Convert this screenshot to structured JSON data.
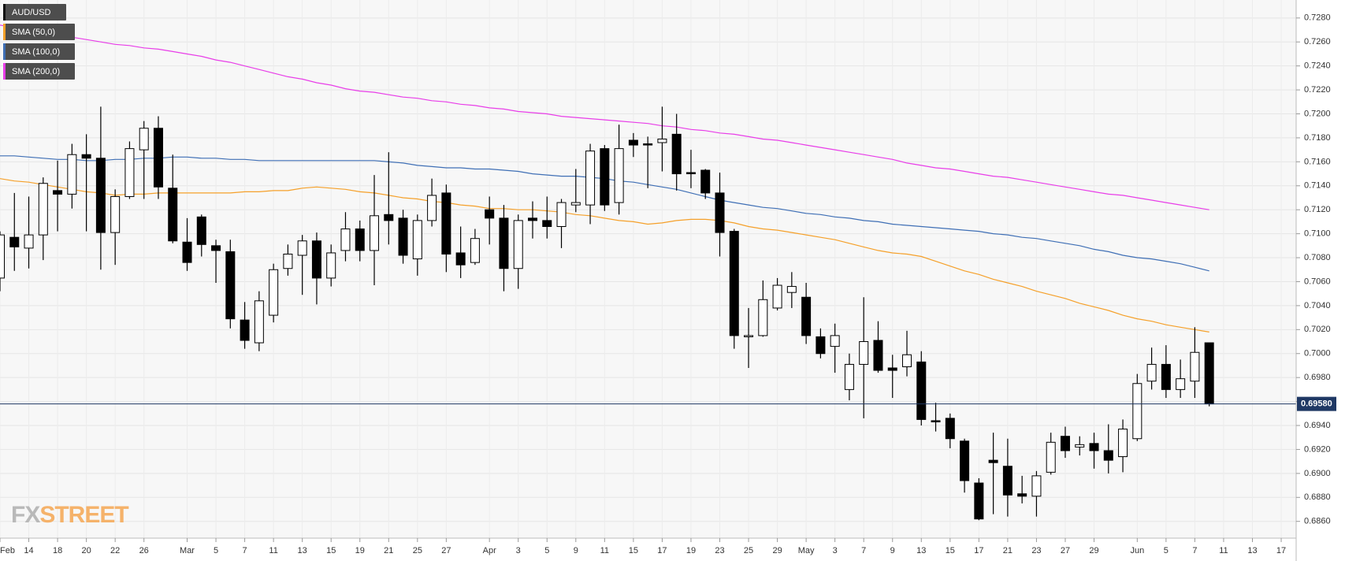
{
  "chart_data": {
    "type": "candlestick",
    "categories": [
      "Feb",
      null,
      "14",
      null,
      "18",
      null,
      "20",
      null,
      "22",
      null,
      "26",
      null,
      null,
      "Mar",
      null,
      "5",
      null,
      "7",
      null,
      "11",
      null,
      "13",
      null,
      "15",
      null,
      "19",
      null,
      "21",
      null,
      "25",
      null,
      "27",
      null,
      null,
      "Apr",
      null,
      "3",
      null,
      "5",
      null,
      "9",
      null,
      "11",
      null,
      "15",
      null,
      "17",
      null,
      "19",
      null,
      "23",
      null,
      "25",
      null,
      "29",
      null,
      "May",
      null,
      "3",
      null,
      "7",
      null,
      "9",
      null,
      "13",
      null,
      "15",
      null,
      "17",
      null,
      "21",
      null,
      "23",
      null,
      "27",
      null,
      "29",
      null,
      null,
      "Jun",
      null,
      "5",
      null,
      "7",
      null,
      "11",
      null,
      "13",
      null,
      "17"
    ],
    "series": [
      {
        "name": "AUD/USD",
        "color": "#000000",
        "up_color": "#ffffff",
        "down_color": "#000000",
        "open": [
          0.7063,
          0.7097,
          0.7088,
          0.7099,
          0.7136,
          0.7133,
          0.7166,
          0.7163,
          0.7101,
          0.7131,
          0.717,
          0.7188,
          0.7138,
          0.7093,
          0.7114,
          0.709,
          0.7085,
          0.7028,
          0.7009,
          0.7032,
          0.7071,
          0.7082,
          0.7094,
          0.7063,
          0.7086,
          0.7104,
          0.7086,
          0.7116,
          0.7113,
          0.7079,
          0.7111,
          0.7134,
          0.7084,
          0.7076,
          0.712,
          0.7113,
          0.7071,
          0.7113,
          0.7111,
          0.7106,
          0.7124,
          0.7124,
          0.7171,
          0.7126,
          0.7178,
          0.7175,
          0.7176,
          0.7183,
          0.7151,
          0.7153,
          0.7134,
          0.7102,
          0.7014,
          0.7015,
          0.7038,
          0.7051,
          0.7047,
          0.7014,
          0.7006,
          0.697,
          0.6991,
          0.7011,
          0.6988,
          0.6989,
          0.6993,
          0.6944,
          0.6946,
          0.6927,
          0.6892,
          0.6911,
          0.6906,
          0.6883,
          0.6881,
          0.6901,
          0.6931,
          0.6922,
          0.6925,
          0.6919,
          0.6914,
          0.6929,
          0.6977,
          0.6991,
          0.697,
          0.6977,
          0.7009,
          null,
          null,
          null,
          null,
          null
        ],
        "high": [
          0.7102,
          0.7134,
          0.7131,
          0.7147,
          0.7161,
          0.7175,
          0.7183,
          0.7206,
          0.7137,
          0.7177,
          0.7194,
          0.7198,
          0.7166,
          0.7113,
          0.7116,
          0.7095,
          0.7095,
          0.7043,
          0.7052,
          0.7075,
          0.7091,
          0.7099,
          0.7101,
          0.7091,
          0.7118,
          0.7111,
          0.7149,
          0.7168,
          0.712,
          0.7116,
          0.7146,
          0.7141,
          0.7106,
          0.7104,
          0.7131,
          0.7124,
          0.7116,
          0.7127,
          0.7131,
          0.7129,
          0.7154,
          0.7175,
          0.7174,
          0.7191,
          0.7184,
          0.7181,
          0.7206,
          0.72,
          0.717,
          0.7154,
          0.7151,
          0.7104,
          0.7038,
          0.7061,
          0.7063,
          0.7068,
          0.7059,
          0.7021,
          0.7025,
          0.7,
          0.7047,
          0.7027,
          0.6999,
          0.7019,
          0.7002,
          0.6959,
          0.695,
          0.6929,
          0.6896,
          0.6934,
          0.6929,
          0.6898,
          0.6902,
          0.6934,
          0.6939,
          0.6931,
          0.6934,
          0.6941,
          0.6945,
          0.6983,
          0.7005,
          0.7007,
          0.6995,
          0.7022,
          0.7009,
          null,
          null,
          null,
          null,
          null
        ],
        "low": [
          0.7052,
          0.7069,
          0.7071,
          0.7078,
          0.7102,
          0.7121,
          0.7102,
          0.707,
          0.7074,
          0.7129,
          0.7129,
          0.7129,
          0.7092,
          0.7069,
          0.7081,
          0.7059,
          0.7021,
          0.7004,
          0.7002,
          0.7026,
          0.7065,
          0.7049,
          0.7041,
          0.7056,
          0.7077,
          0.7077,
          0.7057,
          0.7091,
          0.7075,
          0.7065,
          0.7106,
          0.7068,
          0.7063,
          0.7074,
          0.7091,
          0.7052,
          0.7054,
          0.7096,
          0.7096,
          0.7088,
          0.7118,
          0.7108,
          0.7119,
          0.7116,
          0.7164,
          0.7138,
          0.7152,
          0.7136,
          0.7138,
          0.7129,
          0.7081,
          0.7004,
          0.6988,
          0.7014,
          0.7036,
          0.7038,
          0.7008,
          0.6996,
          0.6984,
          0.6961,
          0.6946,
          0.6984,
          0.6963,
          0.6981,
          0.694,
          0.6935,
          0.6921,
          0.6884,
          0.6861,
          0.6866,
          0.6864,
          0.6875,
          0.6864,
          0.6899,
          0.6913,
          0.6915,
          0.6904,
          0.69,
          0.6901,
          0.6927,
          0.697,
          0.6963,
          0.6963,
          0.6963,
          0.6956,
          null,
          null,
          null,
          null,
          null
        ],
        "close": [
          0.7099,
          0.7089,
          0.7099,
          0.7142,
          0.7133,
          0.7166,
          0.7163,
          0.7101,
          0.7131,
          0.7171,
          0.7188,
          0.7139,
          0.7094,
          0.7076,
          0.7091,
          0.7086,
          0.7029,
          0.7011,
          0.7044,
          0.707,
          0.7083,
          0.7094,
          0.7063,
          0.7084,
          0.7104,
          0.7086,
          0.7115,
          0.7111,
          0.7082,
          0.7111,
          0.7132,
          0.7083,
          0.7074,
          0.7096,
          0.7113,
          0.7071,
          0.7111,
          0.7111,
          0.7106,
          0.7126,
          0.7126,
          0.7169,
          0.7124,
          0.7171,
          0.7174,
          0.7174,
          0.7179,
          0.715,
          0.715,
          0.7134,
          0.7101,
          0.7015,
          0.7015,
          0.7045,
          0.7057,
          0.7056,
          0.7015,
          0.7,
          0.7015,
          0.6991,
          0.701,
          0.6986,
          0.6986,
          0.6999,
          0.6945,
          0.6943,
          0.6929,
          0.6894,
          0.6862,
          0.6909,
          0.6882,
          0.6881,
          0.6898,
          0.6926,
          0.6919,
          0.6924,
          0.6919,
          0.6911,
          0.6937,
          0.6975,
          0.6991,
          0.697,
          0.6979,
          0.7001,
          0.6958,
          null,
          null,
          null,
          null,
          null
        ]
      },
      {
        "name": "SMA (50,0)",
        "type": "line",
        "color": "#f5a02a",
        "values": [
          0.7146,
          0.7144,
          0.7143,
          0.7141,
          0.7139,
          0.7137,
          0.7135,
          0.7134,
          0.7132,
          0.7133,
          0.7133,
          0.7134,
          0.7134,
          0.7134,
          0.7134,
          0.7134,
          0.7134,
          0.7135,
          0.7135,
          0.7136,
          0.7136,
          0.7138,
          0.7139,
          0.7138,
          0.7137,
          0.7135,
          0.7134,
          0.7132,
          0.713,
          0.7129,
          0.7127,
          0.7126,
          0.7124,
          0.7123,
          0.7121,
          0.7121,
          0.712,
          0.712,
          0.7119,
          0.7118,
          0.7116,
          0.7115,
          0.7113,
          0.7111,
          0.711,
          0.7108,
          0.7109,
          0.7111,
          0.7112,
          0.7112,
          0.7111,
          0.7109,
          0.7106,
          0.7104,
          0.7103,
          0.7101,
          0.7099,
          0.7097,
          0.7095,
          0.7092,
          0.7089,
          0.7086,
          0.7084,
          0.7083,
          0.7081,
          0.7077,
          0.7073,
          0.7069,
          0.7066,
          0.7062,
          0.7059,
          0.7056,
          0.7052,
          0.7049,
          0.7046,
          0.7042,
          0.7039,
          0.7036,
          0.7032,
          0.7029,
          0.7027,
          0.7024,
          0.7022,
          0.702,
          0.7018,
          null,
          null,
          null,
          null,
          null
        ]
      },
      {
        "name": "SMA (100,0)",
        "type": "line",
        "color": "#3f6fb5",
        "values": [
          0.7165,
          0.7165,
          0.7164,
          0.7163,
          0.7162,
          0.7162,
          0.7161,
          0.7161,
          0.7162,
          0.7162,
          0.7163,
          0.7163,
          0.7164,
          0.7164,
          0.7163,
          0.7163,
          0.7162,
          0.7162,
          0.7161,
          0.7161,
          0.7161,
          0.7161,
          0.7161,
          0.7161,
          0.7161,
          0.7161,
          0.7161,
          0.716,
          0.7159,
          0.7157,
          0.7156,
          0.7155,
          0.7155,
          0.7154,
          0.7154,
          0.7153,
          0.7152,
          0.715,
          0.7149,
          0.7148,
          0.7148,
          0.7147,
          0.7146,
          0.7144,
          0.7143,
          0.7141,
          0.7139,
          0.7137,
          0.7134,
          0.7131,
          0.7128,
          0.7126,
          0.7124,
          0.7122,
          0.7121,
          0.7119,
          0.7117,
          0.7116,
          0.7114,
          0.7113,
          0.7111,
          0.711,
          0.7108,
          0.7107,
          0.7106,
          0.7105,
          0.7104,
          0.7103,
          0.7102,
          0.71,
          0.7099,
          0.7097,
          0.7096,
          0.7094,
          0.7092,
          0.709,
          0.7087,
          0.7085,
          0.7082,
          0.708,
          0.7079,
          0.7077,
          0.7075,
          0.7072,
          0.7069,
          null,
          null,
          null,
          null,
          null
        ]
      },
      {
        "name": "SMA (200,0)",
        "type": "line",
        "color": "#e83ee8",
        "values": [
          0.7274,
          0.7272,
          0.727,
          0.7268,
          0.7266,
          0.7264,
          0.7262,
          0.726,
          0.7258,
          0.7257,
          0.7255,
          0.7254,
          0.7252,
          0.725,
          0.7248,
          0.7245,
          0.7243,
          0.724,
          0.7237,
          0.7234,
          0.7231,
          0.7229,
          0.7226,
          0.7224,
          0.7221,
          0.7219,
          0.7218,
          0.7216,
          0.7214,
          0.7213,
          0.7211,
          0.721,
          0.7208,
          0.7207,
          0.7205,
          0.7204,
          0.7202,
          0.7201,
          0.72,
          0.7198,
          0.7197,
          0.7196,
          0.7195,
          0.7194,
          0.7193,
          0.7192,
          0.719,
          0.7189,
          0.7187,
          0.7186,
          0.7184,
          0.7183,
          0.7181,
          0.7179,
          0.7178,
          0.7176,
          0.7174,
          0.7172,
          0.717,
          0.7168,
          0.7166,
          0.7164,
          0.7162,
          0.7159,
          0.7157,
          0.7155,
          0.7154,
          0.7152,
          0.715,
          0.7148,
          0.7147,
          0.7145,
          0.7143,
          0.7141,
          0.7139,
          0.7137,
          0.7135,
          0.7133,
          0.7132,
          0.713,
          0.7128,
          0.7126,
          0.7124,
          0.7122,
          0.712,
          null,
          null,
          null,
          null,
          null
        ]
      }
    ],
    "ylim": [
      0.6846,
      0.7295
    ],
    "yticks": [
      {
        "value": 0.686,
        "label": "0.6860"
      },
      {
        "value": 0.688,
        "label": "0.6880"
      },
      {
        "value": 0.69,
        "label": "0.6900"
      },
      {
        "value": 0.692,
        "label": "0.6920"
      },
      {
        "value": 0.694,
        "label": "0.6940"
      },
      {
        "value": 0.696,
        "label": "0.6960"
      },
      {
        "value": 0.698,
        "label": "0.6980"
      },
      {
        "value": 0.7,
        "label": "0.7000"
      },
      {
        "value": 0.702,
        "label": "0.7020"
      },
      {
        "value": 0.704,
        "label": "0.7040"
      },
      {
        "value": 0.706,
        "label": "0.7060"
      },
      {
        "value": 0.708,
        "label": "0.7080"
      },
      {
        "value": 0.71,
        "label": "0.7100"
      },
      {
        "value": 0.712,
        "label": "0.7120"
      },
      {
        "value": 0.714,
        "label": "0.7140"
      },
      {
        "value": 0.716,
        "label": "0.7160"
      },
      {
        "value": 0.718,
        "label": "0.7180"
      },
      {
        "value": 0.72,
        "label": "0.7200"
      },
      {
        "value": 0.722,
        "label": "0.7220"
      },
      {
        "value": 0.724,
        "label": "0.7240"
      },
      {
        "value": 0.726,
        "label": "0.7260"
      },
      {
        "value": 0.728,
        "label": "0.7280"
      }
    ],
    "price_line": {
      "value": 0.6958,
      "label": "0.69580",
      "color": "#1f3864"
    },
    "grid": true,
    "legend": "top-left",
    "watermark": {
      "prefix": "FX",
      "suffix": "STREET"
    }
  }
}
